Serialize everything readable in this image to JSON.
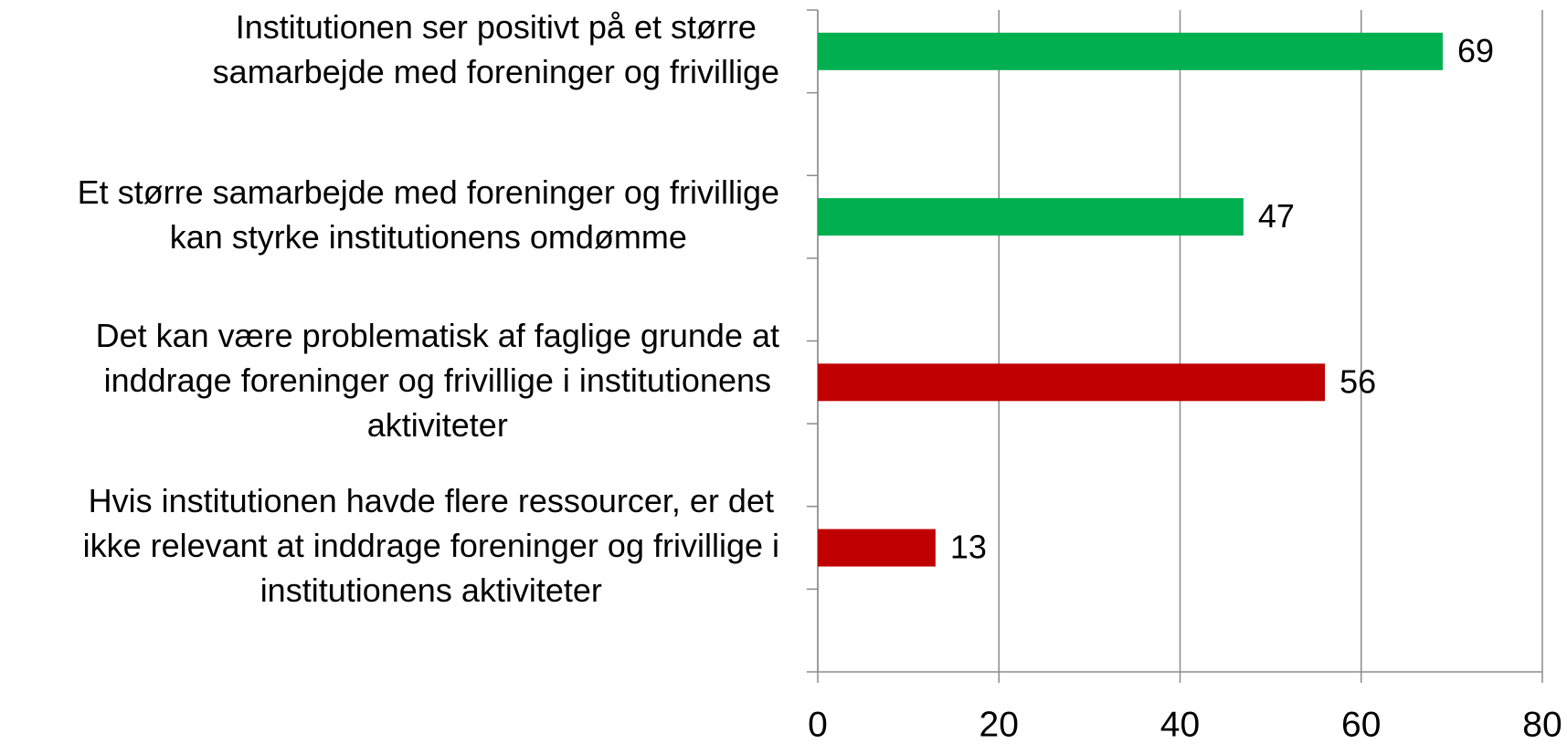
{
  "chart_data": {
    "type": "barh",
    "categories": [
      "Institutionen ser positivt på et større\nsamarbejde med foreninger og frivillige",
      "Et større samarbejde med foreninger og frivillige\nkan styrke institutionens omdømme",
      "Det kan være problematisk af faglige grunde at\ninddrage foreninger og frivillige i institutionens\naktiviteter",
      "Hvis institutionen havde flere ressourcer, er det\nikke relevant at inddrage foreninger og frivillige i\ninstitutionens aktiviteter"
    ],
    "values": [
      69,
      47,
      56,
      13
    ],
    "colors": [
      "#00b050",
      "#00b050",
      "#c00000",
      "#c00000"
    ],
    "xlim": [
      0,
      80
    ],
    "xticks": [
      0,
      20,
      40,
      60,
      80
    ],
    "grid": true
  }
}
